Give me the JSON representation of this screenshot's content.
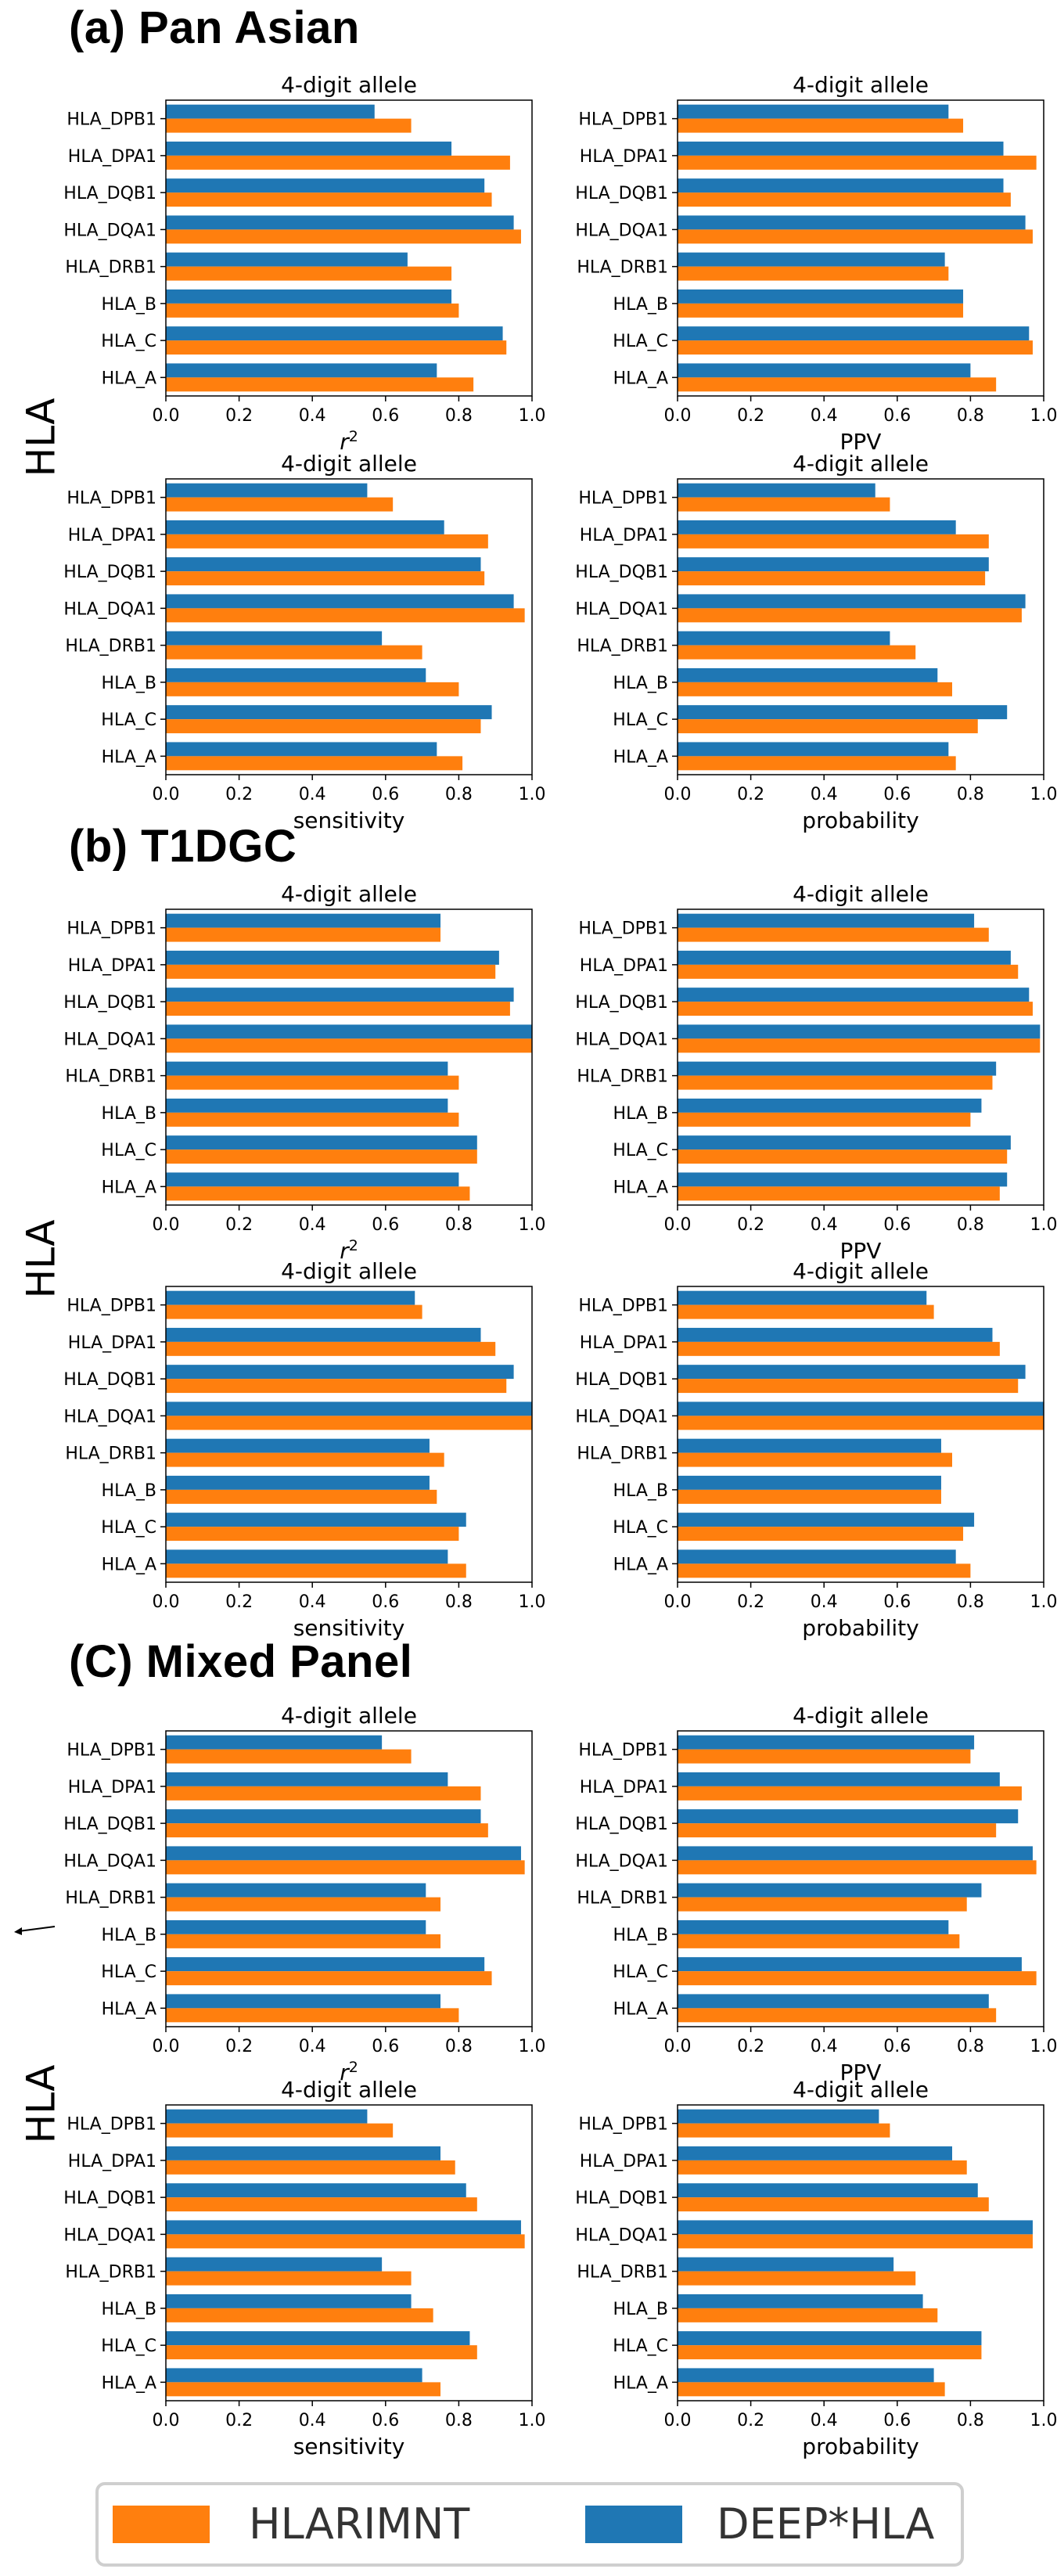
{
  "sections": [
    {
      "title": "(a) Pan Asian",
      "ylabel": "HLA"
    },
    {
      "title": "(b) T1DGC",
      "ylabel": "HLA"
    },
    {
      "title": "(C) Mixed Panel",
      "ylabel": "HLA"
    }
  ],
  "legend": {
    "items": [
      {
        "label": "HLARIMNT",
        "color": "#ff7f0e"
      },
      {
        "label": "DEEP*HLA",
        "color": "#1f77b4"
      }
    ]
  },
  "chart_data": [
    {
      "type": "bar",
      "orientation": "horizontal",
      "section": "(a) Pan Asian",
      "title": "4-digit allele",
      "xlabel": "r2",
      "ylabel": "",
      "xlim": [
        0,
        1
      ],
      "xticks": [
        "0.0",
        "0.2",
        "0.4",
        "0.6",
        "0.8",
        "1.0"
      ],
      "categories": [
        "HLA_DPB1",
        "HLA_DPA1",
        "HLA_DQB1",
        "HLA_DQA1",
        "HLA_DRB1",
        "HLA_B",
        "HLA_C",
        "HLA_A"
      ],
      "series": [
        {
          "name": "DEEP*HLA",
          "values": [
            0.57,
            0.78,
            0.87,
            0.95,
            0.66,
            0.78,
            0.92,
            0.74
          ]
        },
        {
          "name": "HLARIMNT",
          "values": [
            0.67,
            0.94,
            0.89,
            0.97,
            0.78,
            0.8,
            0.93,
            0.84
          ]
        }
      ]
    },
    {
      "type": "bar",
      "orientation": "horizontal",
      "section": "(a) Pan Asian",
      "title": "4-digit allele",
      "xlabel": "PPV",
      "ylabel": "",
      "xlim": [
        0,
        1
      ],
      "xticks": [
        "0.0",
        "0.2",
        "0.4",
        "0.6",
        "0.8",
        "1.0"
      ],
      "categories": [
        "HLA_DPB1",
        "HLA_DPA1",
        "HLA_DQB1",
        "HLA_DQA1",
        "HLA_DRB1",
        "HLA_B",
        "HLA_C",
        "HLA_A"
      ],
      "series": [
        {
          "name": "DEEP*HLA",
          "values": [
            0.74,
            0.89,
            0.89,
            0.95,
            0.73,
            0.78,
            0.96,
            0.8
          ]
        },
        {
          "name": "HLARIMNT",
          "values": [
            0.78,
            0.98,
            0.91,
            0.97,
            0.74,
            0.78,
            0.97,
            0.87
          ]
        }
      ]
    },
    {
      "type": "bar",
      "orientation": "horizontal",
      "section": "(a) Pan Asian",
      "title": "4-digit allele",
      "xlabel": "sensitivity",
      "ylabel": "",
      "xlim": [
        0,
        1
      ],
      "xticks": [
        "0.0",
        "0.2",
        "0.4",
        "0.6",
        "0.8",
        "1.0"
      ],
      "categories": [
        "HLA_DPB1",
        "HLA_DPA1",
        "HLA_DQB1",
        "HLA_DQA1",
        "HLA_DRB1",
        "HLA_B",
        "HLA_C",
        "HLA_A"
      ],
      "series": [
        {
          "name": "DEEP*HLA",
          "values": [
            0.55,
            0.76,
            0.86,
            0.95,
            0.59,
            0.71,
            0.89,
            0.74
          ]
        },
        {
          "name": "HLARIMNT",
          "values": [
            0.62,
            0.88,
            0.87,
            0.98,
            0.7,
            0.8,
            0.86,
            0.81
          ]
        }
      ]
    },
    {
      "type": "bar",
      "orientation": "horizontal",
      "section": "(a) Pan Asian",
      "title": "4-digit allele",
      "xlabel": "probability",
      "ylabel": "",
      "xlim": [
        0,
        1
      ],
      "xticks": [
        "0.0",
        "0.2",
        "0.4",
        "0.6",
        "0.8",
        "1.0"
      ],
      "categories": [
        "HLA_DPB1",
        "HLA_DPA1",
        "HLA_DQB1",
        "HLA_DQA1",
        "HLA_DRB1",
        "HLA_B",
        "HLA_C",
        "HLA_A"
      ],
      "series": [
        {
          "name": "DEEP*HLA",
          "values": [
            0.54,
            0.76,
            0.85,
            0.95,
            0.58,
            0.71,
            0.9,
            0.74
          ]
        },
        {
          "name": "HLARIMNT",
          "values": [
            0.58,
            0.85,
            0.84,
            0.94,
            0.65,
            0.75,
            0.82,
            0.76
          ]
        }
      ]
    },
    {
      "type": "bar",
      "orientation": "horizontal",
      "section": "(b) T1DGC",
      "title": "4-digit allele",
      "xlabel": "r2",
      "ylabel": "",
      "xlim": [
        0,
        1
      ],
      "xticks": [
        "0.0",
        "0.2",
        "0.4",
        "0.6",
        "0.8",
        "1.0"
      ],
      "categories": [
        "HLA_DPB1",
        "HLA_DPA1",
        "HLA_DQB1",
        "HLA_DQA1",
        "HLA_DRB1",
        "HLA_B",
        "HLA_C",
        "HLA_A"
      ],
      "series": [
        {
          "name": "DEEP*HLA",
          "values": [
            0.75,
            0.91,
            0.95,
            1.0,
            0.77,
            0.77,
            0.85,
            0.8
          ]
        },
        {
          "name": "HLARIMNT",
          "values": [
            0.75,
            0.9,
            0.94,
            1.0,
            0.8,
            0.8,
            0.85,
            0.83
          ]
        }
      ]
    },
    {
      "type": "bar",
      "orientation": "horizontal",
      "section": "(b) T1DGC",
      "title": "4-digit allele",
      "xlabel": "PPV",
      "ylabel": "",
      "xlim": [
        0,
        1
      ],
      "xticks": [
        "0.0",
        "0.2",
        "0.4",
        "0.6",
        "0.8",
        "1.0"
      ],
      "categories": [
        "HLA_DPB1",
        "HLA_DPA1",
        "HLA_DQB1",
        "HLA_DQA1",
        "HLA_DRB1",
        "HLA_B",
        "HLA_C",
        "HLA_A"
      ],
      "series": [
        {
          "name": "DEEP*HLA",
          "values": [
            0.81,
            0.91,
            0.96,
            0.99,
            0.87,
            0.83,
            0.91,
            0.9
          ]
        },
        {
          "name": "HLARIMNT",
          "values": [
            0.85,
            0.93,
            0.97,
            0.99,
            0.86,
            0.8,
            0.9,
            0.88
          ]
        }
      ]
    },
    {
      "type": "bar",
      "orientation": "horizontal",
      "section": "(b) T1DGC",
      "title": "4-digit allele",
      "xlabel": "sensitivity",
      "ylabel": "",
      "xlim": [
        0,
        1
      ],
      "xticks": [
        "0.0",
        "0.2",
        "0.4",
        "0.6",
        "0.8",
        "1.0"
      ],
      "categories": [
        "HLA_DPB1",
        "HLA_DPA1",
        "HLA_DQB1",
        "HLA_DQA1",
        "HLA_DRB1",
        "HLA_B",
        "HLA_C",
        "HLA_A"
      ],
      "series": [
        {
          "name": "DEEP*HLA",
          "values": [
            0.68,
            0.86,
            0.95,
            1.0,
            0.72,
            0.72,
            0.82,
            0.77
          ]
        },
        {
          "name": "HLARIMNT",
          "values": [
            0.7,
            0.9,
            0.93,
            1.0,
            0.76,
            0.74,
            0.8,
            0.82
          ]
        }
      ]
    },
    {
      "type": "bar",
      "orientation": "horizontal",
      "section": "(b) T1DGC",
      "title": "4-digit allele",
      "xlabel": "probability",
      "ylabel": "",
      "xlim": [
        0,
        1
      ],
      "xticks": [
        "0.0",
        "0.2",
        "0.4",
        "0.6",
        "0.8",
        "1.0"
      ],
      "categories": [
        "HLA_DPB1",
        "HLA_DPA1",
        "HLA_DQB1",
        "HLA_DQA1",
        "HLA_DRB1",
        "HLA_B",
        "HLA_C",
        "HLA_A"
      ],
      "series": [
        {
          "name": "DEEP*HLA",
          "values": [
            0.68,
            0.86,
            0.95,
            1.0,
            0.72,
            0.72,
            0.81,
            0.76
          ]
        },
        {
          "name": "HLARIMNT",
          "values": [
            0.7,
            0.88,
            0.93,
            1.0,
            0.75,
            0.72,
            0.78,
            0.8
          ]
        }
      ]
    },
    {
      "type": "bar",
      "orientation": "horizontal",
      "section": "(C) Mixed Panel",
      "title": "4-digit allele",
      "xlabel": "r2",
      "ylabel": "",
      "xlim": [
        0,
        1
      ],
      "xticks": [
        "0.0",
        "0.2",
        "0.4",
        "0.6",
        "0.8",
        "1.0"
      ],
      "categories": [
        "HLA_DPB1",
        "HLA_DPA1",
        "HLA_DQB1",
        "HLA_DQA1",
        "HLA_DRB1",
        "HLA_B",
        "HLA_C",
        "HLA_A"
      ],
      "series": [
        {
          "name": "DEEP*HLA",
          "values": [
            0.59,
            0.77,
            0.86,
            0.97,
            0.71,
            0.71,
            0.87,
            0.75
          ]
        },
        {
          "name": "HLARIMNT",
          "values": [
            0.67,
            0.86,
            0.88,
            0.98,
            0.75,
            0.75,
            0.89,
            0.8
          ]
        }
      ]
    },
    {
      "type": "bar",
      "orientation": "horizontal",
      "section": "(C) Mixed Panel",
      "title": "4-digit allele",
      "xlabel": "PPV",
      "ylabel": "",
      "xlim": [
        0,
        1
      ],
      "xticks": [
        "0.0",
        "0.2",
        "0.4",
        "0.6",
        "0.8",
        "1.0"
      ],
      "categories": [
        "HLA_DPB1",
        "HLA_DPA1",
        "HLA_DQB1",
        "HLA_DQA1",
        "HLA_DRB1",
        "HLA_B",
        "HLA_C",
        "HLA_A"
      ],
      "series": [
        {
          "name": "DEEP*HLA",
          "values": [
            0.81,
            0.88,
            0.93,
            0.97,
            0.83,
            0.74,
            0.94,
            0.85
          ]
        },
        {
          "name": "HLARIMNT",
          "values": [
            0.8,
            0.94,
            0.87,
            0.98,
            0.79,
            0.77,
            0.98,
            0.87
          ]
        }
      ]
    },
    {
      "type": "bar",
      "orientation": "horizontal",
      "section": "(C) Mixed Panel",
      "title": "4-digit allele",
      "xlabel": "sensitivity",
      "ylabel": "",
      "xlim": [
        0,
        1
      ],
      "xticks": [
        "0.0",
        "0.2",
        "0.4",
        "0.6",
        "0.8",
        "1.0"
      ],
      "categories": [
        "HLA_DPB1",
        "HLA_DPA1",
        "HLA_DQB1",
        "HLA_DQA1",
        "HLA_DRB1",
        "HLA_B",
        "HLA_C",
        "HLA_A"
      ],
      "series": [
        {
          "name": "DEEP*HLA",
          "values": [
            0.55,
            0.75,
            0.82,
            0.97,
            0.59,
            0.67,
            0.83,
            0.7
          ]
        },
        {
          "name": "HLARIMNT",
          "values": [
            0.62,
            0.79,
            0.85,
            0.98,
            0.67,
            0.73,
            0.85,
            0.75
          ]
        }
      ]
    },
    {
      "type": "bar",
      "orientation": "horizontal",
      "section": "(C) Mixed Panel",
      "title": "4-digit allele",
      "xlabel": "probability",
      "ylabel": "",
      "xlim": [
        0,
        1
      ],
      "xticks": [
        "0.0",
        "0.2",
        "0.4",
        "0.6",
        "0.8",
        "1.0"
      ],
      "categories": [
        "HLA_DPB1",
        "HLA_DPA1",
        "HLA_DQB1",
        "HLA_DQA1",
        "HLA_DRB1",
        "HLA_B",
        "HLA_C",
        "HLA_A"
      ],
      "series": [
        {
          "name": "DEEP*HLA",
          "values": [
            0.55,
            0.75,
            0.82,
            0.97,
            0.59,
            0.67,
            0.83,
            0.7
          ]
        },
        {
          "name": "HLARIMNT",
          "values": [
            0.58,
            0.79,
            0.85,
            0.97,
            0.65,
            0.71,
            0.83,
            0.73
          ]
        }
      ]
    }
  ]
}
